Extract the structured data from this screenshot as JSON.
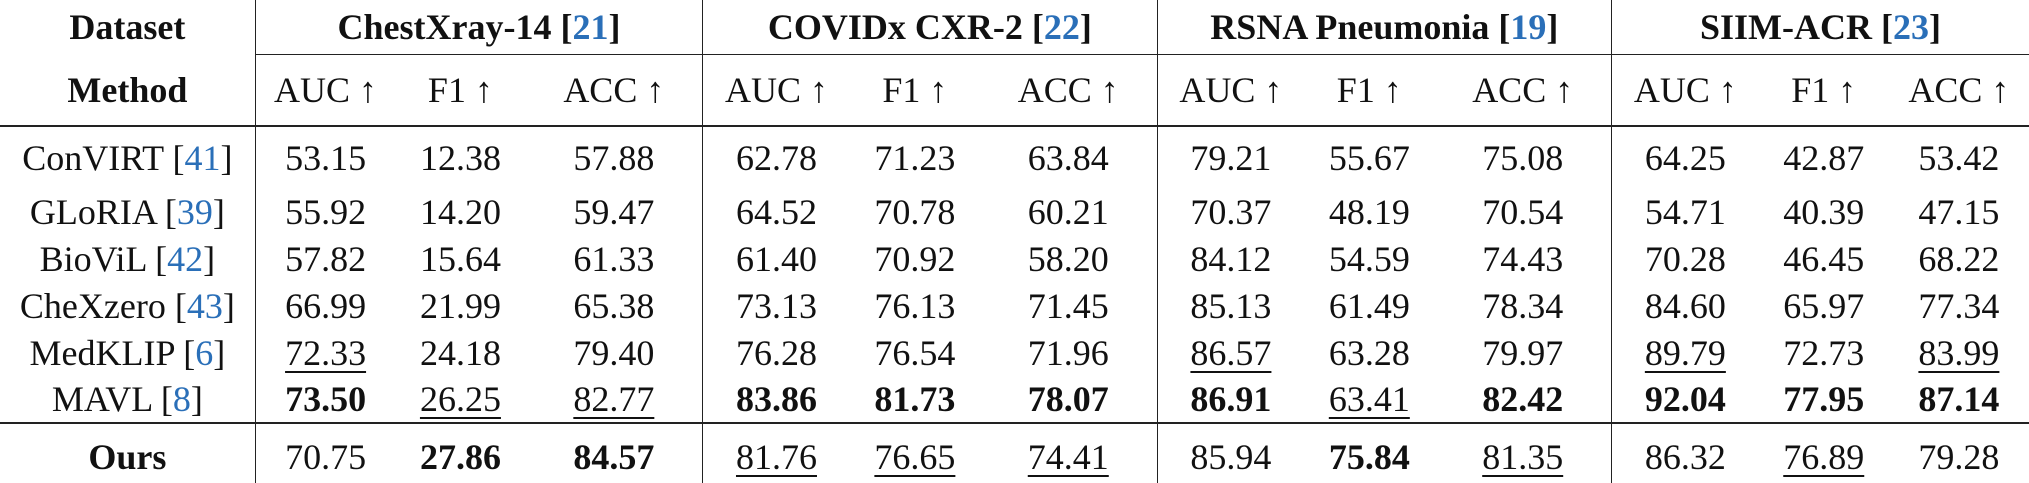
{
  "header": {
    "dataset_label": "Dataset",
    "method_label": "Method",
    "datasets": [
      {
        "name": "ChestXray-14 [",
        "ref": "21",
        "close": "]"
      },
      {
        "name": "COVIDx CXR-2 [",
        "ref": "22",
        "close": "]"
      },
      {
        "name": "RSNA Pneumonia [",
        "ref": "19",
        "close": "]"
      },
      {
        "name": "SIIM-ACR [",
        "ref": "23",
        "close": "]"
      }
    ],
    "metrics": [
      "AUC ↑",
      "F1 ↑",
      "ACC ↑"
    ]
  },
  "rows": [
    {
      "method": "ConVIRT [",
      "ref": "41",
      "close": "]",
      "cells": [
        {
          "v": "53.15"
        },
        {
          "v": "12.38"
        },
        {
          "v": "57.88"
        },
        {
          "v": "62.78"
        },
        {
          "v": "71.23"
        },
        {
          "v": "63.84"
        },
        {
          "v": "79.21"
        },
        {
          "v": "55.67"
        },
        {
          "v": "75.08"
        },
        {
          "v": "64.25"
        },
        {
          "v": "42.87"
        },
        {
          "v": "53.42"
        }
      ]
    },
    {
      "method": "GLoRIA [",
      "ref": "39",
      "close": "]",
      "cells": [
        {
          "v": "55.92"
        },
        {
          "v": "14.20"
        },
        {
          "v": "59.47"
        },
        {
          "v": "64.52"
        },
        {
          "v": "70.78"
        },
        {
          "v": "60.21"
        },
        {
          "v": "70.37"
        },
        {
          "v": "48.19"
        },
        {
          "v": "70.54"
        },
        {
          "v": "54.71"
        },
        {
          "v": "40.39"
        },
        {
          "v": "47.15"
        }
      ]
    },
    {
      "method": "BioViL [",
      "ref": "42",
      "close": "]",
      "cells": [
        {
          "v": "57.82"
        },
        {
          "v": "15.64"
        },
        {
          "v": "61.33"
        },
        {
          "v": "61.40"
        },
        {
          "v": "70.92"
        },
        {
          "v": "58.20"
        },
        {
          "v": "84.12"
        },
        {
          "v": "54.59"
        },
        {
          "v": "74.43"
        },
        {
          "v": "70.28"
        },
        {
          "v": "46.45"
        },
        {
          "v": "68.22"
        }
      ]
    },
    {
      "method": "CheXzero [",
      "ref": "43",
      "close": "]",
      "cells": [
        {
          "v": "66.99"
        },
        {
          "v": "21.99"
        },
        {
          "v": "65.38"
        },
        {
          "v": "73.13"
        },
        {
          "v": "76.13"
        },
        {
          "v": "71.45"
        },
        {
          "v": "85.13"
        },
        {
          "v": "61.49"
        },
        {
          "v": "78.34"
        },
        {
          "v": "84.60"
        },
        {
          "v": "65.97"
        },
        {
          "v": "77.34"
        }
      ]
    },
    {
      "method": "MedKLIP [",
      "ref": "6",
      "close": "]",
      "cells": [
        {
          "v": "72.33",
          "u": true
        },
        {
          "v": "24.18"
        },
        {
          "v": "79.40"
        },
        {
          "v": "76.28"
        },
        {
          "v": "76.54"
        },
        {
          "v": "71.96"
        },
        {
          "v": "86.57",
          "u": true
        },
        {
          "v": "63.28"
        },
        {
          "v": "79.97"
        },
        {
          "v": "89.79",
          "u": true
        },
        {
          "v": "72.73"
        },
        {
          "v": "83.99",
          "u": true
        }
      ]
    },
    {
      "method": "MAVL [",
      "ref": "8",
      "close": "]",
      "cells": [
        {
          "v": "73.50",
          "b": true
        },
        {
          "v": "26.25",
          "u": true
        },
        {
          "v": "82.77",
          "u": true
        },
        {
          "v": "83.86",
          "b": true
        },
        {
          "v": "81.73",
          "b": true
        },
        {
          "v": "78.07",
          "b": true
        },
        {
          "v": "86.91",
          "b": true
        },
        {
          "v": "63.41",
          "u": true
        },
        {
          "v": "82.42",
          "b": true
        },
        {
          "v": "92.04",
          "b": true
        },
        {
          "v": "77.95",
          "b": true
        },
        {
          "v": "87.14",
          "b": true
        }
      ]
    }
  ],
  "ours": {
    "method": "Ours",
    "cells": [
      {
        "v": "70.75"
      },
      {
        "v": "27.86",
        "b": true
      },
      {
        "v": "84.57",
        "b": true
      },
      {
        "v": "81.76",
        "u": true
      },
      {
        "v": "76.65",
        "u": true
      },
      {
        "v": "74.41",
        "u": true
      },
      {
        "v": "85.94"
      },
      {
        "v": "75.84",
        "b": true
      },
      {
        "v": "81.35",
        "u": true
      },
      {
        "v": "86.32"
      },
      {
        "v": "76.89",
        "u": true
      },
      {
        "v": "79.28"
      }
    ]
  }
}
